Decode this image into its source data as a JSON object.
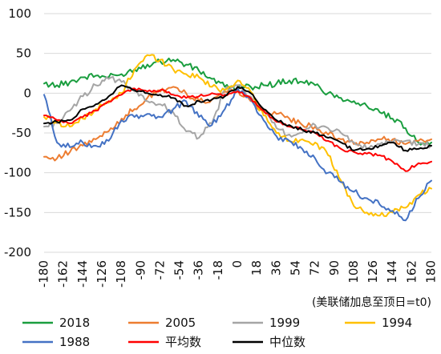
{
  "chart_data": {
    "type": "line",
    "xlabel": "",
    "ylabel": "",
    "annotation": "(美联储加息至顶日=t0)",
    "xlim": [
      -180,
      180
    ],
    "ylim": [
      -200,
      100
    ],
    "x_ticks": [
      -180,
      -162,
      -144,
      -126,
      -108,
      -90,
      -72,
      -54,
      -36,
      -18,
      0,
      18,
      36,
      54,
      72,
      90,
      108,
      126,
      144,
      162,
      180
    ],
    "y_ticks": [
      100,
      50,
      0,
      -50,
      -100,
      -150,
      -200
    ],
    "grid": "horizontal",
    "legend_position": "bottom",
    "x": [
      -180,
      -168,
      -156,
      -144,
      -132,
      -120,
      -108,
      -96,
      -84,
      -72,
      -60,
      -48,
      -36,
      -24,
      -12,
      0,
      12,
      24,
      36,
      48,
      60,
      72,
      84,
      96,
      108,
      120,
      132,
      144,
      156,
      168,
      180
    ],
    "series": [
      {
        "name": "2018",
        "color": "#1a9e3f",
        "values": [
          12,
          10,
          14,
          20,
          22,
          20,
          24,
          30,
          36,
          40,
          42,
          36,
          28,
          18,
          8,
          6,
          8,
          10,
          12,
          16,
          14,
          10,
          0,
          -6,
          -10,
          -16,
          -24,
          -32,
          -44,
          -62,
          -62
        ]
      },
      {
        "name": "2005",
        "color": "#ed7d31",
        "values": [
          -80,
          -82,
          -74,
          -66,
          -58,
          -48,
          -32,
          -20,
          -6,
          2,
          8,
          0,
          -10,
          -8,
          2,
          4,
          -10,
          -22,
          -26,
          -32,
          -40,
          -42,
          -52,
          -58,
          -64,
          -62,
          -58,
          -58,
          -64,
          -60,
          -58
        ]
      },
      {
        "name": "1999",
        "color": "#a5a5a5",
        "values": [
          -42,
          -38,
          -22,
          -4,
          10,
          18,
          14,
          2,
          -10,
          -14,
          -24,
          -48,
          -56,
          -38,
          4,
          10,
          -4,
          -24,
          -44,
          -52,
          -50,
          -40,
          -44,
          -50,
          -62,
          -70,
          -64,
          -62,
          -60,
          -64,
          -66
        ]
      },
      {
        "name": "1994",
        "color": "#ffc000",
        "values": [
          -30,
          -36,
          -42,
          -32,
          -20,
          -12,
          0,
          30,
          48,
          42,
          30,
          24,
          20,
          8,
          4,
          16,
          2,
          -28,
          -50,
          -60,
          -58,
          -62,
          -78,
          -110,
          -142,
          -150,
          -154,
          -150,
          -144,
          -128,
          -120
        ]
      },
      {
        "name": "1988",
        "color": "#4472c4",
        "values": [
          -2,
          -62,
          -68,
          -62,
          -66,
          -60,
          -34,
          -30,
          -26,
          -30,
          -20,
          -10,
          -30,
          -40,
          -20,
          6,
          -8,
          -34,
          -54,
          -60,
          -70,
          -82,
          -100,
          -112,
          -124,
          -132,
          -140,
          -148,
          -160,
          -132,
          -110
        ]
      },
      {
        "name": "平均数",
        "color": "#ff0000",
        "values": [
          -28,
          -34,
          -38,
          -30,
          -22,
          -10,
          -2,
          6,
          2,
          4,
          -2,
          -6,
          -4,
          0,
          -2,
          2,
          -6,
          -22,
          -36,
          -42,
          -46,
          -50,
          -60,
          -70,
          -74,
          -76,
          -78,
          -86,
          -98,
          -88,
          -86
        ]
      },
      {
        "name": "中位数",
        "color": "#000000",
        "values": [
          -38,
          -36,
          -34,
          -20,
          -14,
          -4,
          10,
          4,
          0,
          -2,
          -6,
          -16,
          -10,
          -8,
          -4,
          8,
          0,
          -20,
          -34,
          -40,
          -46,
          -50,
          -56,
          -62,
          -72,
          -70,
          -66,
          -62,
          -72,
          -70,
          -66
        ]
      }
    ]
  }
}
